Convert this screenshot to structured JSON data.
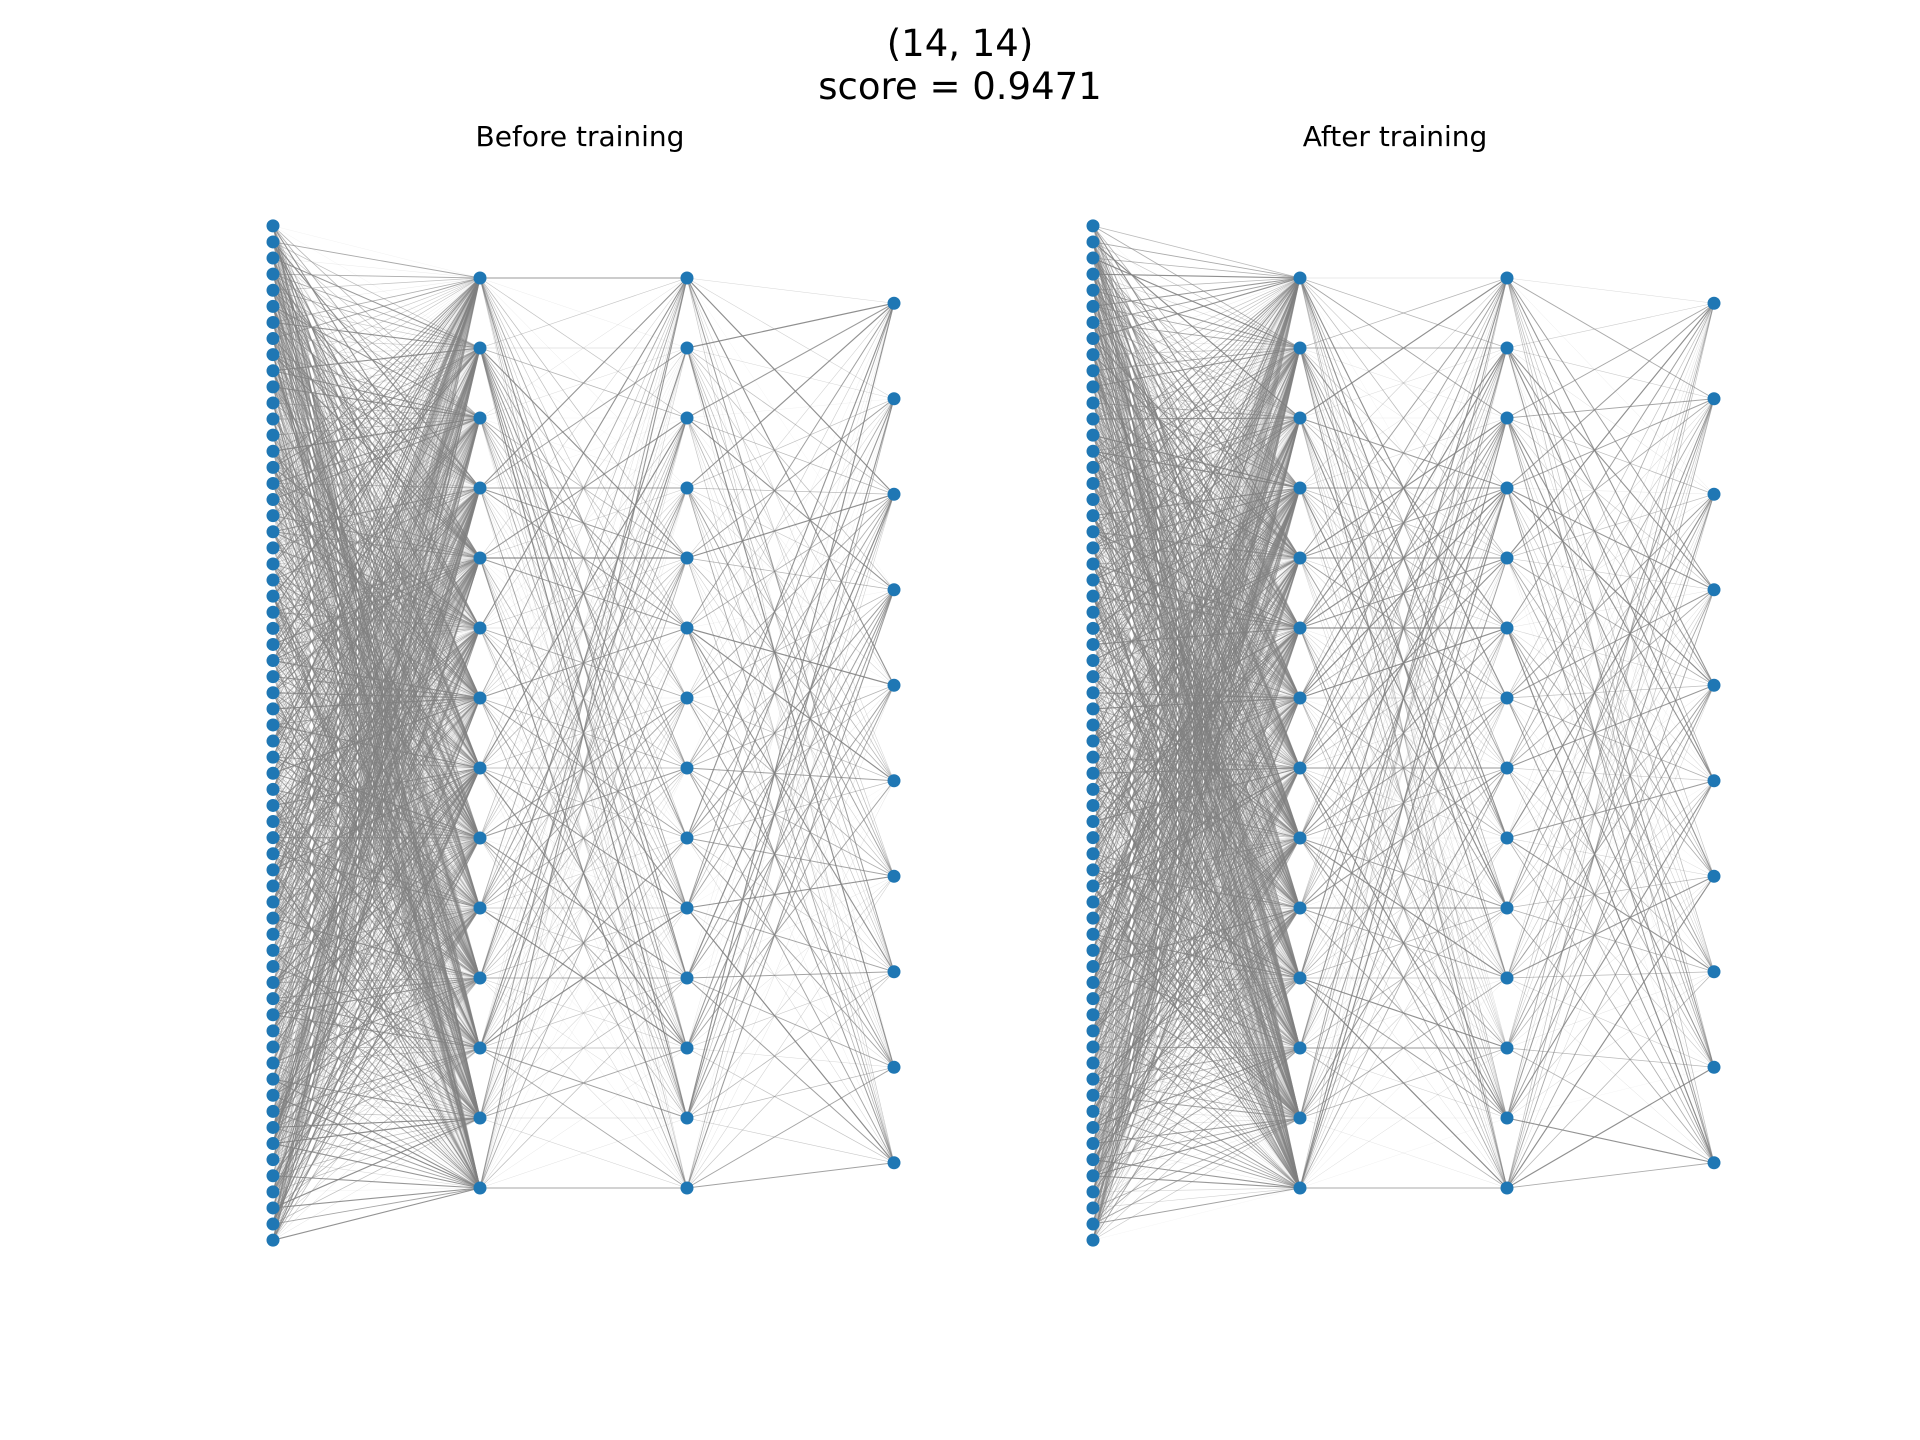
{
  "figure": {
    "title_line1": "(14, 14)",
    "title_line2": "score = 0.9471"
  },
  "panels": [
    {
      "title": "Before training"
    },
    {
      "title": "After training"
    }
  ],
  "network": {
    "layer_sizes": [
      64,
      14,
      14,
      10
    ],
    "node_color": "#1f77b4",
    "edge_color": "#808080"
  }
}
